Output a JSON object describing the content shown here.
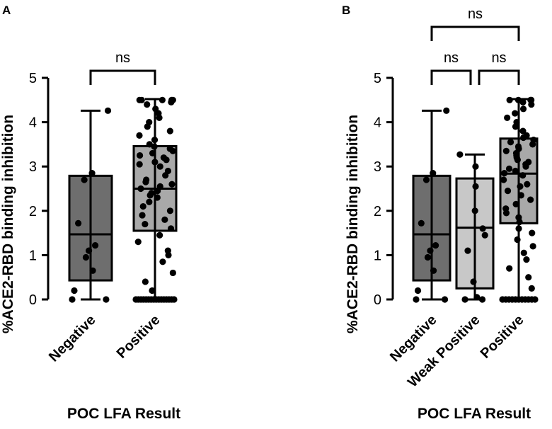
{
  "chart_data": [
    {
      "panel": "A",
      "type": "box",
      "ylabel": "%ACE2-RBD binding inhibition",
      "xlabel": "POC LFA Result",
      "ylim": [
        0,
        5
      ],
      "yticks": [
        "0",
        "1",
        "2",
        "3",
        "4",
        "5"
      ],
      "categories": [
        "Negative",
        "Positive"
      ],
      "series": [
        {
          "name": "Negative",
          "color": "#6e6e6e",
          "min": 0,
          "q1": 0.43,
          "median": 1.47,
          "q3": 2.79,
          "max": 4.26,
          "points": [
            0,
            0,
            0.2,
            0.65,
            0.95,
            1.1,
            1.22,
            1.72,
            2.7,
            2.85,
            4.26
          ]
        },
        {
          "name": "Positive",
          "color": "#a9a9a9",
          "min": 0,
          "q1": 1.55,
          "median": 2.5,
          "q3": 3.46,
          "max": 4.52,
          "points": [
            0,
            0,
            0,
            0,
            0,
            0,
            0,
            0,
            0,
            0,
            0,
            0,
            0,
            0,
            0,
            0,
            0.2,
            0.4,
            0.6,
            0.85,
            1.0,
            1.1,
            1.3,
            1.45,
            1.6,
            1.7,
            1.8,
            1.9,
            2.0,
            2.1,
            2.2,
            2.3,
            2.35,
            2.4,
            2.45,
            2.5,
            2.55,
            2.6,
            2.65,
            2.7,
            2.8,
            2.9,
            3.0,
            3.05,
            3.1,
            3.15,
            3.2,
            3.25,
            3.3,
            3.35,
            3.4,
            3.45,
            3.5,
            3.6,
            3.7,
            3.8,
            3.9,
            4.0,
            4.1,
            4.2,
            4.3,
            4.4,
            4.45,
            4.5,
            4.5,
            4.5,
            4.5,
            4.5
          ]
        }
      ],
      "comparisons": [
        {
          "from": "Negative",
          "to": "Positive",
          "label": "ns"
        }
      ]
    },
    {
      "panel": "B",
      "type": "box",
      "ylabel": "%ACE2-RBD binding inhibition",
      "xlabel": "POC LFA Result",
      "ylim": [
        0,
        5
      ],
      "yticks": [
        "0",
        "1",
        "2",
        "3",
        "4",
        "5"
      ],
      "categories": [
        "Negative",
        "Weak Positive",
        "Positive"
      ],
      "series": [
        {
          "name": "Negative",
          "color": "#6e6e6e",
          "min": 0,
          "q1": 0.43,
          "median": 1.47,
          "q3": 2.79,
          "max": 4.26,
          "points": [
            0,
            0,
            0.2,
            0.65,
            0.95,
            1.1,
            1.22,
            1.72,
            2.7,
            2.85,
            4.26
          ]
        },
        {
          "name": "Weak Positive",
          "color": "#c8c8c8",
          "min": 0,
          "q1": 0.25,
          "median": 1.62,
          "q3": 2.73,
          "max": 3.27,
          "points": [
            0,
            0,
            0.05,
            0.4,
            1.1,
            1.45,
            1.6,
            2.0,
            2.55,
            3.0,
            3.27
          ]
        },
        {
          "name": "Positive",
          "color": "#a9a9a9",
          "min": 0,
          "q1": 1.72,
          "median": 2.84,
          "q3": 3.63,
          "max": 4.52,
          "points": [
            0,
            0,
            0,
            0,
            0,
            0,
            0,
            0,
            0,
            0,
            0,
            0.25,
            0.5,
            0.7,
            0.9,
            1.05,
            1.2,
            1.35,
            1.5,
            1.6,
            1.75,
            1.85,
            1.95,
            2.05,
            2.15,
            2.25,
            2.35,
            2.45,
            2.55,
            2.6,
            2.7,
            2.8,
            2.85,
            2.9,
            2.95,
            3.0,
            3.05,
            3.1,
            3.15,
            3.2,
            3.25,
            3.3,
            3.35,
            3.4,
            3.45,
            3.5,
            3.55,
            3.6,
            3.65,
            3.7,
            3.8,
            3.9,
            4.0,
            4.1,
            4.2,
            4.3,
            4.4,
            4.45,
            4.5,
            4.5,
            4.5,
            4.5,
            4.5
          ]
        }
      ],
      "comparisons": [
        {
          "from": "Negative",
          "to": "Weak Positive",
          "label": "ns"
        },
        {
          "from": "Weak Positive",
          "to": "Positive",
          "label": "ns"
        },
        {
          "from": "Negative",
          "to": "Positive",
          "label": "ns"
        }
      ]
    }
  ]
}
